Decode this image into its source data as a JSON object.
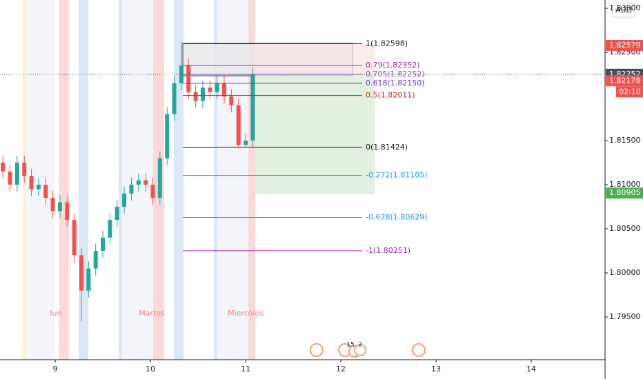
{
  "chart_data": {
    "type": "candlestick",
    "currency": "AUD",
    "x": [
      8.45,
      8.525,
      8.6,
      8.675,
      8.75,
      8.825,
      8.9,
      8.975,
      9.05,
      9.125,
      9.2,
      9.275,
      9.35,
      9.425,
      9.5,
      9.575,
      9.65,
      9.725,
      9.8,
      9.875,
      9.95,
      10.025,
      10.1,
      10.175,
      10.25,
      10.325,
      10.4,
      10.475,
      10.55,
      10.625,
      10.7,
      10.775,
      10.85,
      10.925,
      11.0,
      11.075
    ],
    "open": [
      1.8125,
      1.8115,
      1.81,
      1.8125,
      1.811,
      1.8095,
      1.81,
      1.8085,
      1.807,
      1.808,
      1.806,
      1.802,
      1.798,
      1.8005,
      1.8025,
      1.804,
      1.806,
      1.8075,
      1.809,
      1.81,
      1.8105,
      1.81,
      1.8085,
      1.813,
      1.818,
      1.8215,
      1.8235,
      1.8205,
      1.8195,
      1.821,
      1.8205,
      1.8215,
      1.82,
      1.819,
      1.8145,
      1.815
    ],
    "high": [
      1.8133,
      1.8123,
      1.8133,
      1.8133,
      1.8118,
      1.8108,
      1.8108,
      1.8093,
      1.8088,
      1.8088,
      1.8068,
      1.8028,
      1.8013,
      1.8033,
      1.8048,
      1.8068,
      1.8083,
      1.8098,
      1.8108,
      1.8113,
      1.8113,
      1.8108,
      1.8138,
      1.8188,
      1.8223,
      1.8262,
      1.8243,
      1.8213,
      1.8218,
      1.8218,
      1.8223,
      1.8223,
      1.8208,
      1.8198,
      1.8158,
      1.8233
    ],
    "low": [
      1.8107,
      1.8092,
      1.8092,
      1.8102,
      1.8087,
      1.8087,
      1.8077,
      1.8062,
      1.8062,
      1.8052,
      1.8012,
      1.7945,
      1.7972,
      1.7997,
      1.8017,
      1.8032,
      1.8052,
      1.8067,
      1.8082,
      1.8092,
      1.8092,
      1.8077,
      1.8077,
      1.8122,
      1.8172,
      1.8207,
      1.8197,
      1.8187,
      1.8187,
      1.8197,
      1.8197,
      1.8192,
      1.8182,
      1.8142,
      1.8142,
      1.8142
    ],
    "close": [
      1.8115,
      1.81,
      1.8125,
      1.811,
      1.8095,
      1.81,
      1.8085,
      1.807,
      1.808,
      1.806,
      1.802,
      1.798,
      1.8005,
      1.8025,
      1.804,
      1.806,
      1.8075,
      1.809,
      1.81,
      1.8105,
      1.81,
      1.8085,
      1.813,
      1.818,
      1.8215,
      1.8235,
      1.8205,
      1.8195,
      1.821,
      1.8205,
      1.8215,
      1.82,
      1.819,
      1.8145,
      1.815,
      1.8225
    ],
    "up_color": "#26a69a",
    "down_color": "#ef5350",
    "xlim": [
      8.42,
      14.775
    ],
    "xticks": [
      9,
      10,
      11,
      12,
      13,
      14
    ],
    "ylim": [
      1.79016,
      1.83094
    ],
    "yticks": [
      {
        "value": 1.795,
        "label": "1.79500"
      },
      {
        "value": 1.8,
        "label": "1.80000"
      },
      {
        "value": 1.805,
        "label": "1.80500"
      },
      {
        "value": 1.81,
        "label": "1.81000"
      },
      {
        "value": 1.815,
        "label": "1.81500"
      },
      {
        "value": 1.825,
        "label": "1.82500"
      },
      {
        "value": 1.83,
        "label": "1.83000"
      }
    ],
    "fib_levels": [
      {
        "label": "1(1.82598)",
        "value": 1.82598,
        "color": "#131722"
      },
      {
        "label": "0.79(1.82352)",
        "value": 1.82352,
        "color": "#9c27b0"
      },
      {
        "label": "0.705(1.82252)",
        "value": 1.82252,
        "color": "#7e57c2"
      },
      {
        "label": "0.618(1.82150)",
        "value": 1.8215,
        "color": "#673ab7"
      },
      {
        "label": "0.5(1.82011)",
        "value": 1.82011,
        "color": "#c62828"
      },
      {
        "label": "0(1.81424)",
        "value": 1.81424,
        "color": "#131722"
      },
      {
        "label": "-0.272(1.81105)",
        "value": 1.81105,
        "color": "#2196f3"
      },
      {
        "label": "-0.678(1.80629)",
        "value": 1.80629,
        "color": "#2196f3"
      },
      {
        "label": "-1(1.80251)",
        "value": 1.80251,
        "color": "#9c27b0"
      }
    ],
    "price_tags": [
      {
        "label": "1.82579",
        "value": 1.82579,
        "color": "#ef5350"
      },
      {
        "label": "1.82252",
        "value": 1.82252,
        "color": "#4a4e5a"
      },
      {
        "label": "1.82178",
        "value": 1.82178,
        "color": "#ef5350"
      },
      {
        "label": "1.80905",
        "value": 1.80905,
        "color": "#4caf50"
      }
    ],
    "countdown": "02:10",
    "sessions": [
      "lun",
      "Martes",
      "Miercoles"
    ],
    "events": [
      "15",
      "2"
    ]
  }
}
